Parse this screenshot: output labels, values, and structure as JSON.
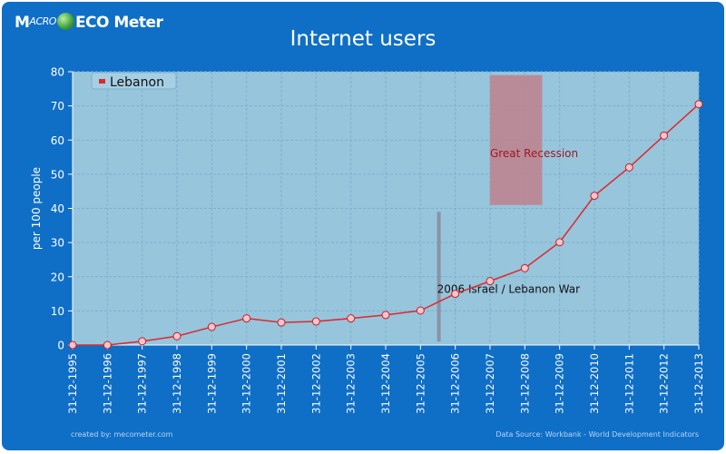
{
  "brand": {
    "part1": "M",
    "part1_small": "ACRO",
    "part2": "ECO",
    "part3": "Meter"
  },
  "title": "Internet users",
  "footer": {
    "left": "created by: mecometer.com",
    "right": "Data Source: Workbank - World Development Indicators"
  },
  "colors": {
    "background": "#0f6fc6",
    "plot": "#96c5dc",
    "series": "#e0272c",
    "recession": "#c0808c",
    "war": "#8a8a9a"
  },
  "chart_data": {
    "type": "line",
    "title": "Internet users",
    "xlabel": "",
    "ylabel": "per 100 people",
    "ylim": [
      0,
      80
    ],
    "yticks": [
      0,
      10,
      20,
      30,
      40,
      50,
      60,
      70,
      80
    ],
    "grid": true,
    "legend": "top-left",
    "categories": [
      "31-12-1995",
      "31-12-1996",
      "31-12-1997",
      "31-12-1998",
      "31-12-1999",
      "31-12-2000",
      "31-12-2001",
      "31-12-2002",
      "31-12-2003",
      "31-12-2004",
      "31-12-2005",
      "31-12-2006",
      "31-12-2007",
      "31-12-2008",
      "31-12-2009",
      "31-12-2010",
      "31-12-2011",
      "31-12-2012",
      "31-12-2013"
    ],
    "series": [
      {
        "name": "Lebanon",
        "values": [
          0.0,
          0.0,
          1.1,
          2.6,
          5.3,
          7.8,
          6.6,
          6.9,
          7.8,
          8.8,
          10.1,
          15.0,
          18.7,
          22.5,
          30.1,
          43.7,
          52.0,
          61.3,
          70.5
        ]
      }
    ],
    "annotations": [
      {
        "label": "2006 Israel / Lebanon War",
        "x": "2006-07-12",
        "y_range": [
          1,
          39
        ],
        "kind": "line"
      },
      {
        "label": "Great Recession",
        "x_range": [
          "2007-12-31",
          "2009-06-30"
        ],
        "y_range": [
          41,
          79
        ],
        "kind": "band"
      }
    ]
  }
}
